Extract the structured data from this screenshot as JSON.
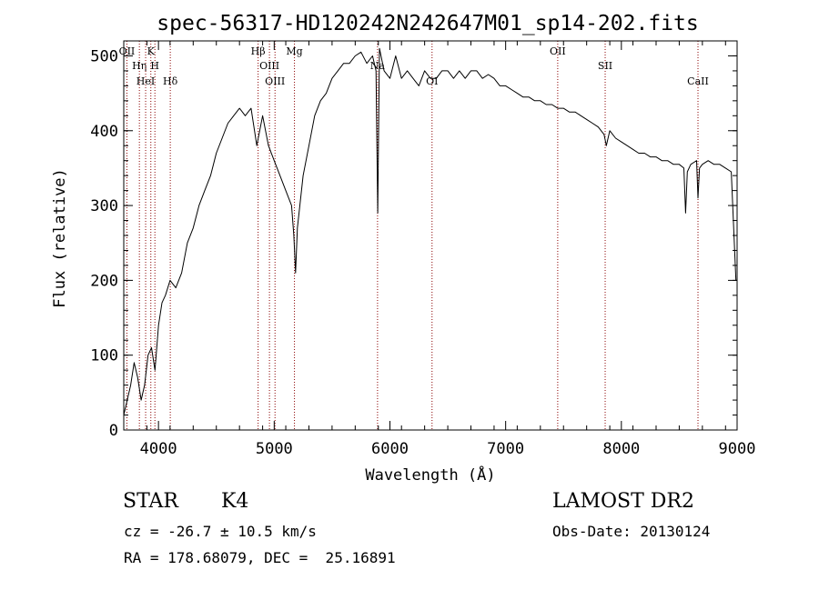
{
  "chart_data": {
    "type": "line",
    "title": "spec-56317-HD120242N242647M01_sp14-202.fits",
    "xlabel": "Wavelength (Å)",
    "ylabel": "Flux (relative)",
    "xlim": [
      3700,
      9000
    ],
    "ylim": [
      0,
      520
    ],
    "xticks": [
      4000,
      5000,
      6000,
      7000,
      8000,
      9000
    ],
    "yticks": [
      0,
      100,
      200,
      300,
      400,
      500
    ],
    "grid": false,
    "line_color": "#000000",
    "marker_color": "#8b0000",
    "series": [
      {
        "x": [
          3700,
          3730,
          3760,
          3790,
          3820,
          3850,
          3880,
          3910,
          3940,
          3970,
          4000,
          4030,
          4060,
          4100,
          4150,
          4200,
          4250,
          4300,
          4350,
          4400,
          4450,
          4500,
          4550,
          4600,
          4650,
          4700,
          4750,
          4800,
          4850,
          4900,
          4950,
          5000,
          5050,
          5100,
          5150,
          5170,
          5185,
          5200,
          5250,
          5300,
          5350,
          5400,
          5450,
          5500,
          5550,
          5600,
          5650,
          5700,
          5750,
          5800,
          5850,
          5880,
          5895,
          5910,
          5950,
          6000,
          6050,
          6100,
          6150,
          6200,
          6250,
          6300,
          6350,
          6400,
          6450,
          6500,
          6550,
          6600,
          6650,
          6700,
          6750,
          6800,
          6850,
          6900,
          6950,
          7000,
          7050,
          7100,
          7150,
          7200,
          7250,
          7300,
          7350,
          7400,
          7450,
          7500,
          7550,
          7600,
          7650,
          7700,
          7750,
          7800,
          7850,
          7870,
          7900,
          7950,
          8000,
          8050,
          8100,
          8150,
          8200,
          8250,
          8300,
          8350,
          8400,
          8450,
          8500,
          8540,
          8555,
          8570,
          8600,
          8650,
          8662,
          8675,
          8700,
          8750,
          8800,
          8850,
          8900,
          8950,
          8990
        ],
        "y": [
          20,
          40,
          60,
          90,
          70,
          40,
          60,
          100,
          110,
          80,
          140,
          170,
          180,
          200,
          190,
          210,
          250,
          270,
          300,
          320,
          340,
          370,
          390,
          410,
          420,
          430,
          420,
          430,
          380,
          420,
          380,
          360,
          340,
          320,
          300,
          260,
          210,
          270,
          340,
          380,
          420,
          440,
          450,
          470,
          480,
          490,
          490,
          500,
          505,
          490,
          500,
          480,
          290,
          510,
          480,
          470,
          500,
          470,
          480,
          470,
          460,
          480,
          470,
          470,
          480,
          480,
          470,
          480,
          470,
          480,
          480,
          470,
          475,
          470,
          460,
          460,
          455,
          450,
          445,
          445,
          440,
          440,
          435,
          435,
          430,
          430,
          425,
          425,
          420,
          415,
          410,
          405,
          395,
          380,
          400,
          390,
          385,
          380,
          375,
          370,
          370,
          365,
          365,
          360,
          360,
          355,
          355,
          350,
          290,
          345,
          355,
          360,
          310,
          350,
          355,
          360,
          355,
          355,
          350,
          345,
          200
        ]
      }
    ],
    "line_markers": [
      {
        "x": 3727,
        "label": "OII"
      },
      {
        "x": 3835,
        "label": "Hη"
      },
      {
        "x": 3889,
        "label": "HeI"
      },
      {
        "x": 3934,
        "label": "K"
      },
      {
        "x": 3969,
        "label": "H"
      },
      {
        "x": 4102,
        "label": "Hδ"
      },
      {
        "x": 4861,
        "label": "Hβ"
      },
      {
        "x": 4959,
        "label": "OIII"
      },
      {
        "x": 5007,
        "label": "OIII"
      },
      {
        "x": 5175,
        "label": "Mg"
      },
      {
        "x": 5893,
        "label": "Na"
      },
      {
        "x": 6364,
        "label": "OI"
      },
      {
        "x": 7450,
        "label": "OII"
      },
      {
        "x": 7860,
        "label": "SII"
      },
      {
        "x": 8662,
        "label": "CaII"
      }
    ]
  },
  "info": {
    "object_class": "STAR",
    "subclass": "K4",
    "survey": "LAMOST DR2",
    "redshift_line": "cz = -26.7 ± 10.5 km/s",
    "obs_date_line": "Obs-Date: 20130124",
    "coords_line": "RA = 178.68079, DEC =  25.16891"
  }
}
